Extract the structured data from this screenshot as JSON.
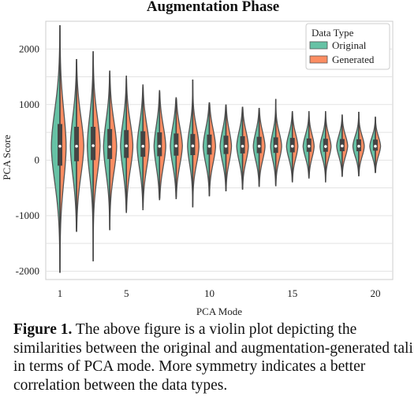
{
  "chart_data": {
    "type": "violin",
    "title": "Augmentation Phase",
    "xlabel": "PCA Mode",
    "ylabel": "PCA Score",
    "ylim": [
      -2150,
      2500
    ],
    "yticks": [
      -2000,
      -1000,
      0,
      1000,
      2000
    ],
    "xticks": [
      1,
      5,
      10,
      15,
      20
    ],
    "grid": "horizontal",
    "legend": {
      "title": "Data Type",
      "placement": "top-right",
      "entries": [
        {
          "name": "Original",
          "color": "#66c2a5"
        },
        {
          "name": "Generated",
          "color": "#fc8d62"
        }
      ]
    },
    "split": true,
    "modes": [
      {
        "mode": 1,
        "min": -2030,
        "max": 2430,
        "q1": -100,
        "q3": 650,
        "median": 250,
        "original_half_width": 0.5,
        "generated_half_width": 0.36
      },
      {
        "mode": 2,
        "min": -1290,
        "max": 1820,
        "q1": -20,
        "q3": 600,
        "median": 250,
        "original_half_width": 0.36,
        "generated_half_width": 0.42
      },
      {
        "mode": 3,
        "min": -1820,
        "max": 1960,
        "q1": 0,
        "q3": 600,
        "median": 260,
        "original_half_width": 0.34,
        "generated_half_width": 0.4
      },
      {
        "mode": 4,
        "min": -1260,
        "max": 1610,
        "q1": 20,
        "q3": 560,
        "median": 240,
        "original_half_width": 0.36,
        "generated_half_width": 0.4
      },
      {
        "mode": 5,
        "min": -950,
        "max": 1520,
        "q1": 40,
        "q3": 540,
        "median": 255,
        "original_half_width": 0.34,
        "generated_half_width": 0.38
      },
      {
        "mode": 6,
        "min": -900,
        "max": 1360,
        "q1": 60,
        "q3": 520,
        "median": 250,
        "original_half_width": 0.34,
        "generated_half_width": 0.36
      },
      {
        "mode": 7,
        "min": -720,
        "max": 1260,
        "q1": 70,
        "q3": 500,
        "median": 250,
        "original_half_width": 0.32,
        "generated_half_width": 0.36
      },
      {
        "mode": 8,
        "min": -700,
        "max": 1130,
        "q1": 80,
        "q3": 480,
        "median": 255,
        "original_half_width": 0.34,
        "generated_half_width": 0.36
      },
      {
        "mode": 9,
        "min": -850,
        "max": 1450,
        "q1": 90,
        "q3": 470,
        "median": 255,
        "original_half_width": 0.3,
        "generated_half_width": 0.36
      },
      {
        "mode": 10,
        "min": -650,
        "max": 1040,
        "q1": 100,
        "q3": 460,
        "median": 250,
        "original_half_width": 0.36,
        "generated_half_width": 0.36
      },
      {
        "mode": 11,
        "min": -560,
        "max": 1000,
        "q1": 110,
        "q3": 440,
        "median": 250,
        "original_half_width": 0.34,
        "generated_half_width": 0.32
      },
      {
        "mode": 12,
        "min": -530,
        "max": 960,
        "q1": 120,
        "q3": 430,
        "median": 250,
        "original_half_width": 0.34,
        "generated_half_width": 0.34
      },
      {
        "mode": 13,
        "min": -480,
        "max": 940,
        "q1": 125,
        "q3": 420,
        "median": 250,
        "original_half_width": 0.34,
        "generated_half_width": 0.34
      },
      {
        "mode": 14,
        "min": -470,
        "max": 1100,
        "q1": 130,
        "q3": 410,
        "median": 250,
        "original_half_width": 0.3,
        "generated_half_width": 0.34
      },
      {
        "mode": 15,
        "min": -400,
        "max": 880,
        "q1": 140,
        "q3": 400,
        "median": 250,
        "original_half_width": 0.34,
        "generated_half_width": 0.32
      },
      {
        "mode": 16,
        "min": -330,
        "max": 880,
        "q1": 150,
        "q3": 390,
        "median": 250,
        "original_half_width": 0.34,
        "generated_half_width": 0.3
      },
      {
        "mode": 17,
        "min": -400,
        "max": 880,
        "q1": 150,
        "q3": 385,
        "median": 245,
        "original_half_width": 0.32,
        "generated_half_width": 0.32
      },
      {
        "mode": 18,
        "min": -300,
        "max": 820,
        "q1": 160,
        "q3": 380,
        "median": 255,
        "original_half_width": 0.32,
        "generated_half_width": 0.32
      },
      {
        "mode": 19,
        "min": -290,
        "max": 870,
        "q1": 160,
        "q3": 375,
        "median": 250,
        "original_half_width": 0.34,
        "generated_half_width": 0.32
      },
      {
        "mode": 20,
        "min": -230,
        "max": 780,
        "q1": 170,
        "q3": 370,
        "median": 250,
        "original_half_width": 0.32,
        "generated_half_width": 0.3
      }
    ]
  },
  "caption": {
    "label": "Figure 1.",
    "text": " The above figure is a violin plot depicting the similarities between the original and augmentation-generated tali in terms of PCA mode. More symmetry indicates a better correlation between the data types."
  }
}
